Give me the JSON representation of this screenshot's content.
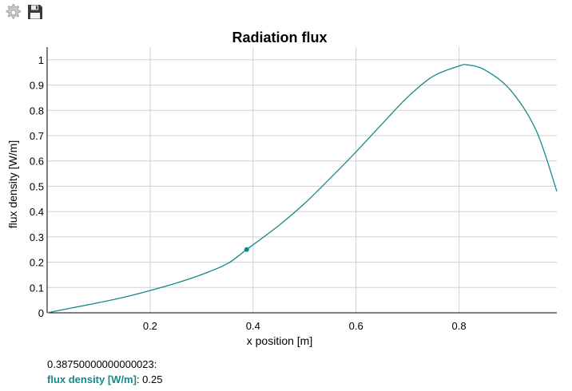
{
  "toolbar": {
    "settings_icon": "gear-icon",
    "save_icon": "floppy-disk-icon"
  },
  "chart_data": {
    "type": "line",
    "title": "Radiation flux",
    "xlabel": "x position [m]",
    "ylabel": "flux density [W/m]",
    "xlim": [
      0,
      0.99
    ],
    "ylim": [
      0,
      1.05
    ],
    "x_ticks": [
      "0.2",
      "0.4",
      "0.6",
      "0.8"
    ],
    "x_tick_values": [
      0.2,
      0.4,
      0.6,
      0.8
    ],
    "y_ticks": [
      "0",
      "0.1",
      "0.2",
      "0.3",
      "0.4",
      "0.5",
      "0.6",
      "0.7",
      "0.8",
      "0.9",
      "1"
    ],
    "y_tick_values": [
      0,
      0.1,
      0.2,
      0.3,
      0.4,
      0.5,
      0.6,
      0.7,
      0.8,
      0.9,
      1.0
    ],
    "grid": true,
    "color": "#138a8a",
    "series": [
      {
        "x": [
          0,
          0.05,
          0.1,
          0.15,
          0.2,
          0.25,
          0.3,
          0.35,
          0.3875,
          0.45,
          0.5,
          0.55,
          0.6,
          0.65,
          0.7,
          0.75,
          0.8,
          0.815,
          0.85,
          0.9,
          0.95,
          0.99
        ],
        "y": [
          0,
          0.02,
          0.04,
          0.062,
          0.088,
          0.117,
          0.151,
          0.194,
          0.25,
          0.345,
          0.432,
          0.532,
          0.636,
          0.745,
          0.852,
          0.935,
          0.975,
          0.98,
          0.96,
          0.88,
          0.72,
          0.48
        ]
      }
    ],
    "highlight": {
      "x": 0.3875,
      "y": 0.25
    }
  },
  "readout": {
    "x_text": "0.38750000000000023:",
    "series_label": "flux density [W/m]",
    "value_text": ": 0.25"
  }
}
